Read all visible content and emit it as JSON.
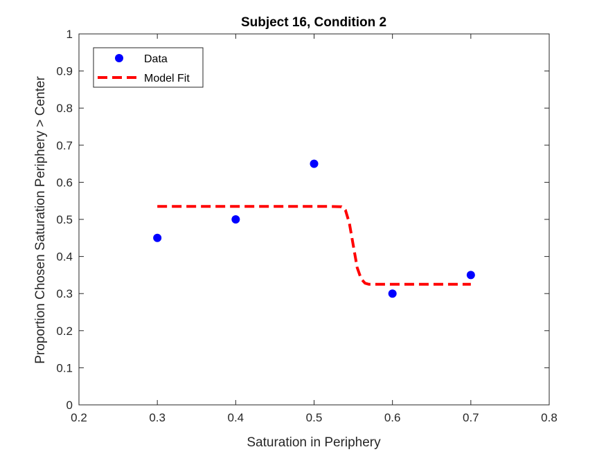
{
  "chart_data": {
    "type": "scatter",
    "title": "Subject 16, Condition 2",
    "xlabel": "Saturation in Periphery",
    "ylabel": "Proportion Chosen Saturation Periphery > Center",
    "xlim": [
      0.2,
      0.8
    ],
    "ylim": [
      0,
      1
    ],
    "xticks": [
      0.2,
      0.3,
      0.4,
      0.5,
      0.6,
      0.7,
      0.8
    ],
    "xtick_labels": [
      "0.2",
      "0.3",
      "0.4",
      "0.5",
      "0.6",
      "0.7",
      "0.8"
    ],
    "yticks": [
      0,
      0.1,
      0.2,
      0.3,
      0.4,
      0.5,
      0.6,
      0.7,
      0.8,
      0.9,
      1
    ],
    "ytick_labels": [
      "0",
      "0.1",
      "0.2",
      "0.3",
      "0.4",
      "0.5",
      "0.6",
      "0.7",
      "0.8",
      "0.9",
      "1"
    ],
    "grid": false,
    "legend_position": "top-left",
    "series": [
      {
        "name": "Data",
        "kind": "markers",
        "color": "#0000ff",
        "x": [
          0.3,
          0.4,
          0.5,
          0.6,
          0.7
        ],
        "y": [
          0.45,
          0.5,
          0.65,
          0.3,
          0.35
        ]
      },
      {
        "name": "Model Fit",
        "kind": "dashed-line",
        "color": "#ff0000",
        "x": [
          0.3,
          0.52,
          0.535,
          0.54,
          0.545,
          0.55,
          0.555,
          0.56,
          0.565,
          0.57,
          0.7
        ],
        "y": [
          0.535,
          0.535,
          0.534,
          0.525,
          0.49,
          0.43,
          0.37,
          0.34,
          0.328,
          0.325,
          0.325
        ]
      }
    ]
  }
}
